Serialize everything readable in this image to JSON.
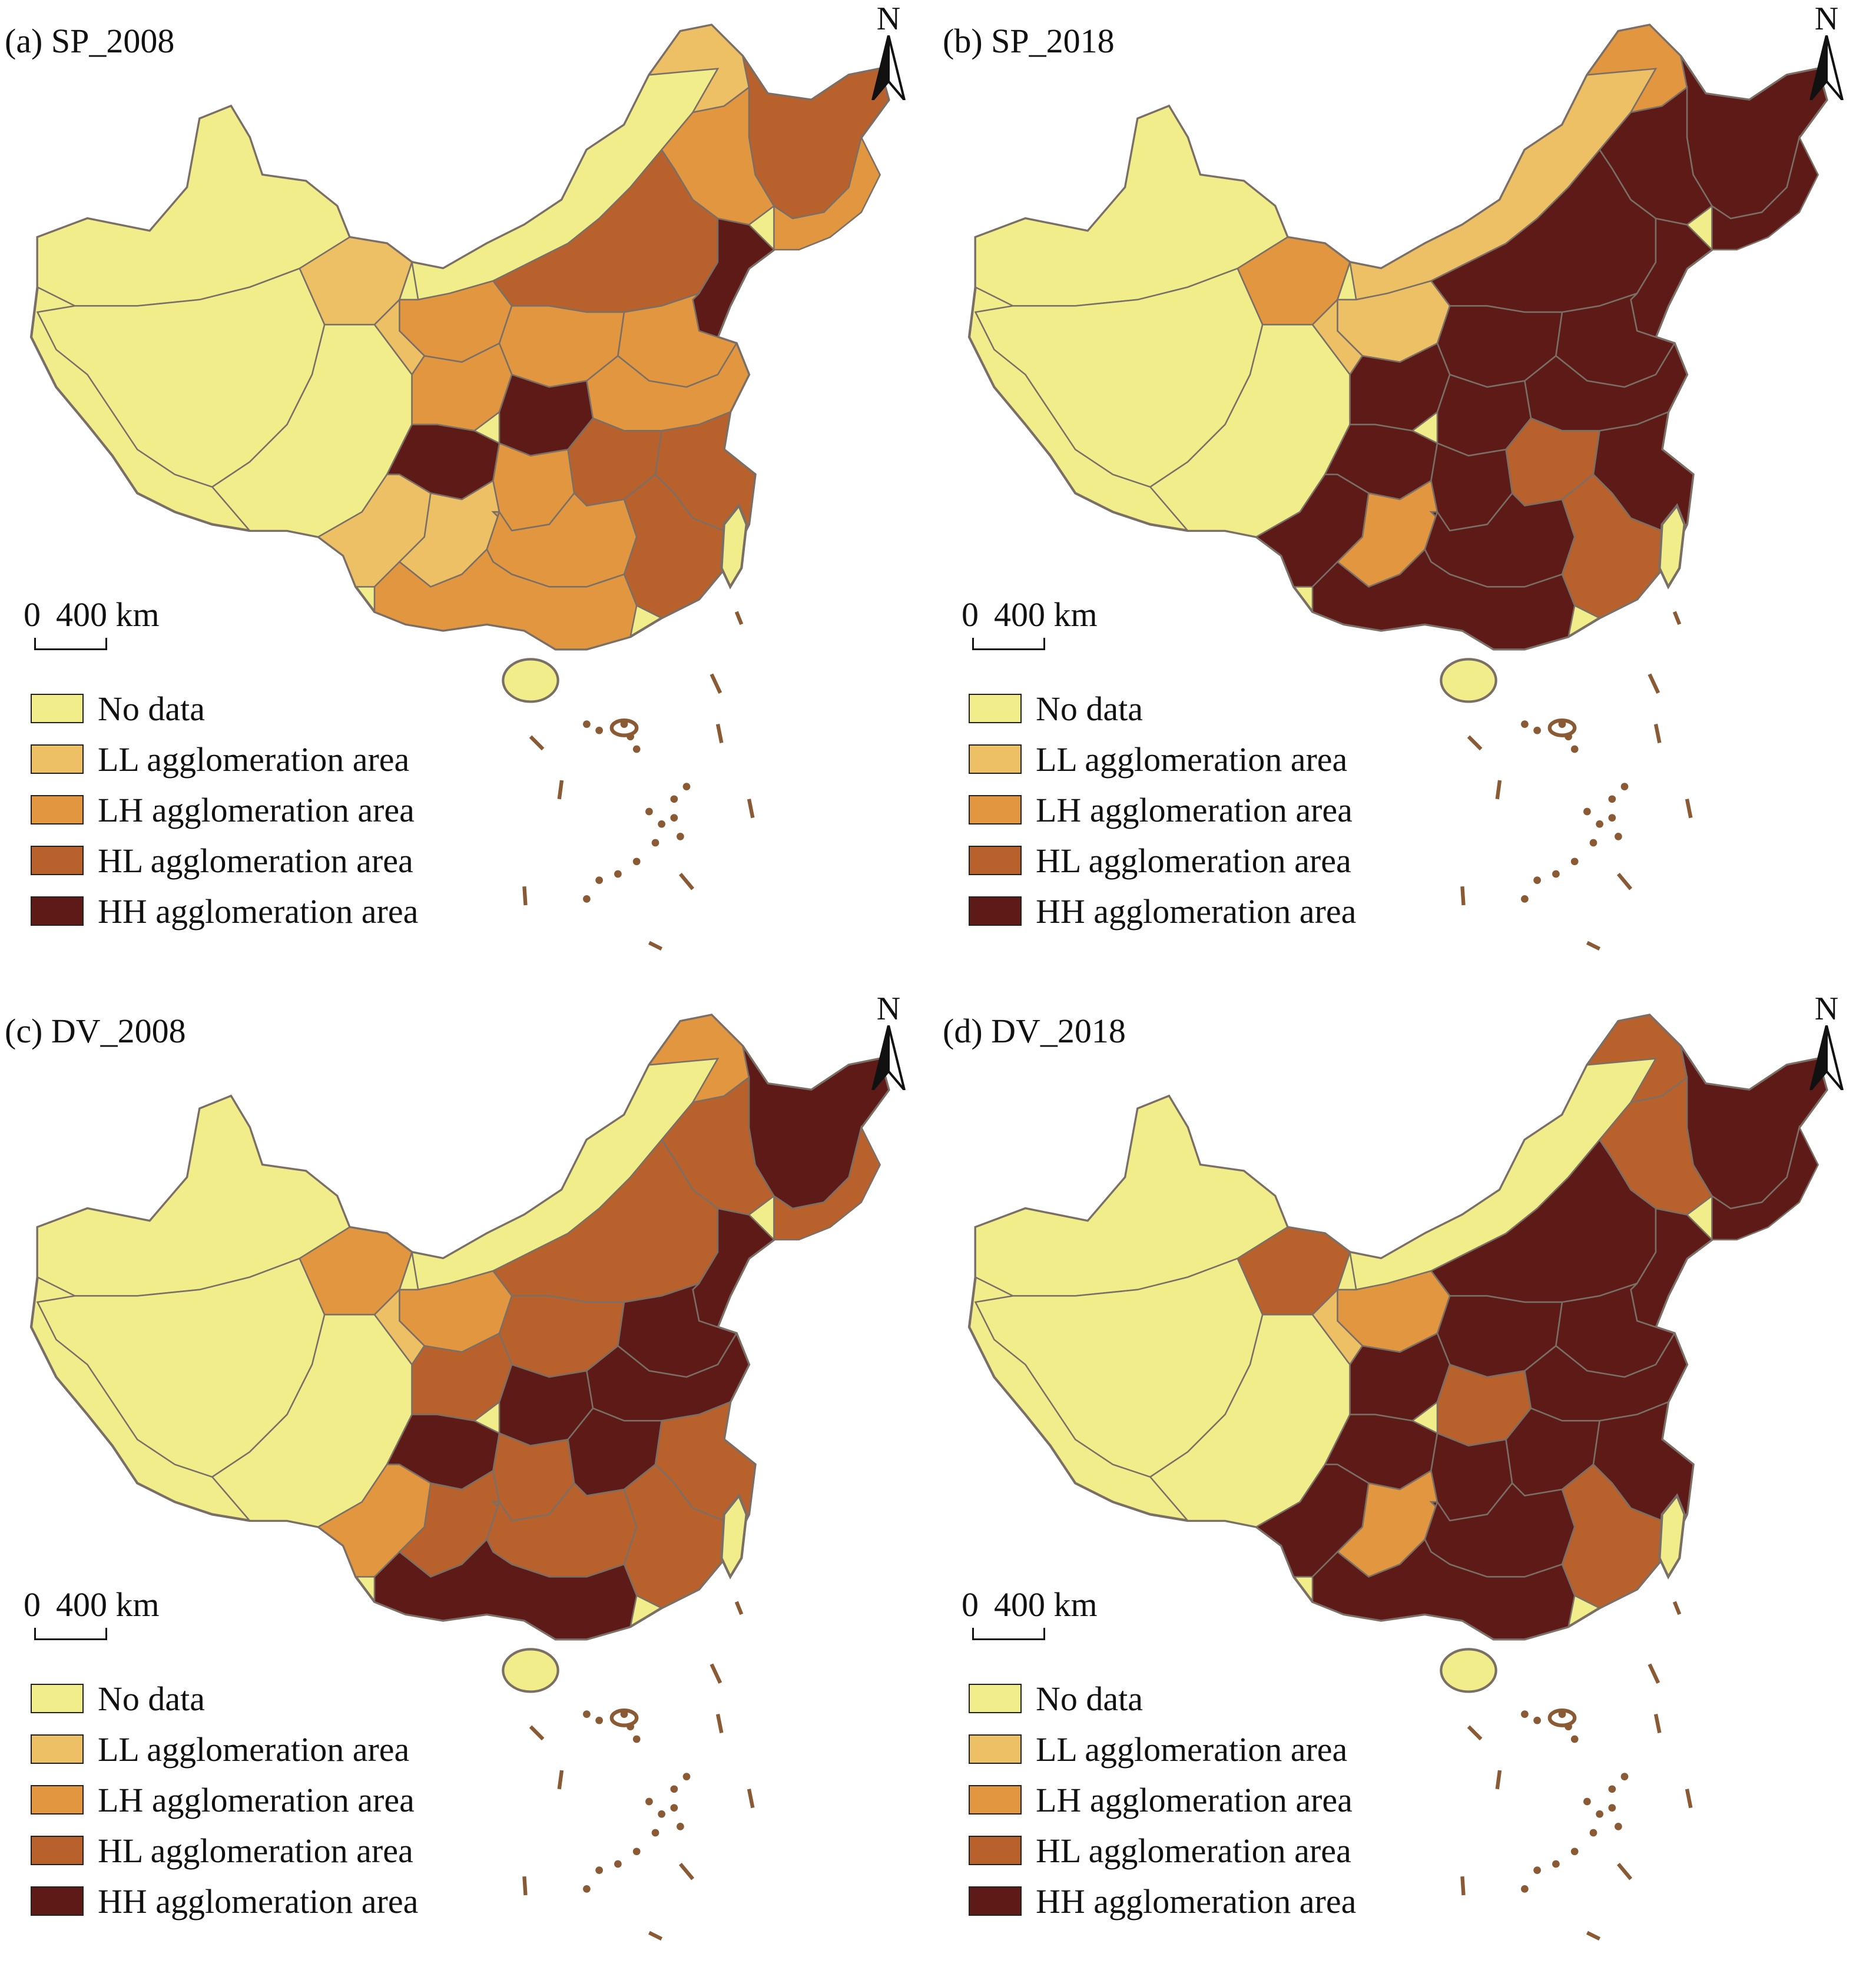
{
  "colors": {
    "no_data": "#f1ed8a",
    "ll": "#eec066",
    "lh": "#e2963f",
    "hl": "#b9612c",
    "hh": "#5e1a16",
    "border": "#7a6f66",
    "islands": "#8a5a35"
  },
  "north_label": "N",
  "scale": {
    "zero": "0",
    "distance": "400 km"
  },
  "legend": [
    {
      "label": "No data",
      "class": "no_data"
    },
    {
      "label": "LL agglomeration area",
      "class": "ll"
    },
    {
      "label": "LH agglomeration area",
      "class": "lh"
    },
    {
      "label": "HL agglomeration area",
      "class": "hl"
    },
    {
      "label": "HH agglomeration area",
      "class": "hh"
    }
  ],
  "panels": [
    {
      "title": "(a) SP_2008"
    },
    {
      "title": "(b) SP_2018"
    },
    {
      "title": "(c) DV_2008"
    },
    {
      "title": "(d) DV_2018"
    }
  ]
}
